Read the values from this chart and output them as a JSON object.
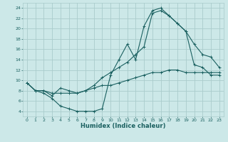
{
  "xlabel": "Humidex (Indice chaleur)",
  "bg_color": "#cce8e8",
  "grid_color": "#aacccc",
  "line_color": "#1a6060",
  "xlim": [
    -0.5,
    23.5
  ],
  "ylim": [
    3,
    25
  ],
  "yticks": [
    4,
    6,
    8,
    10,
    12,
    14,
    16,
    18,
    20,
    22,
    24
  ],
  "xticks": [
    0,
    1,
    2,
    3,
    4,
    5,
    6,
    7,
    8,
    9,
    10,
    11,
    12,
    13,
    14,
    15,
    16,
    17,
    18,
    19,
    20,
    21,
    22,
    23
  ],
  "line1_x": [
    0,
    1,
    2,
    3,
    4,
    5,
    6,
    7,
    8,
    9,
    10,
    11,
    12,
    13,
    14,
    15,
    16,
    17,
    18,
    19,
    20,
    21,
    22,
    23
  ],
  "line1_y": [
    9.5,
    8.0,
    7.5,
    6.5,
    5.0,
    4.5,
    4.0,
    4.0,
    4.0,
    4.5,
    11.0,
    14.0,
    17.0,
    14.0,
    20.5,
    23.5,
    24.0,
    22.5,
    21.0,
    19.5,
    13.0,
    12.5,
    11.0,
    11.0
  ],
  "line2_x": [
    0,
    1,
    2,
    3,
    4,
    5,
    6,
    7,
    8,
    9,
    10,
    11,
    12,
    13,
    14,
    15,
    16,
    17,
    18,
    19,
    20,
    21,
    22,
    23
  ],
  "line2_y": [
    9.5,
    8.0,
    8.0,
    7.0,
    8.5,
    8.0,
    7.5,
    8.0,
    9.0,
    10.5,
    11.5,
    12.5,
    13.5,
    15.0,
    16.5,
    23.0,
    23.5,
    22.5,
    21.0,
    19.5,
    17.0,
    15.0,
    14.5,
    12.5
  ],
  "line3_x": [
    0,
    1,
    2,
    3,
    4,
    5,
    6,
    7,
    8,
    9,
    10,
    11,
    12,
    13,
    14,
    15,
    16,
    17,
    18,
    19,
    20,
    21,
    22,
    23
  ],
  "line3_y": [
    9.5,
    8.0,
    8.0,
    7.5,
    7.5,
    7.5,
    7.5,
    8.0,
    8.5,
    9.0,
    9.0,
    9.5,
    10.0,
    10.5,
    11.0,
    11.5,
    11.5,
    12.0,
    12.0,
    11.5,
    11.5,
    11.5,
    11.5,
    11.5
  ]
}
